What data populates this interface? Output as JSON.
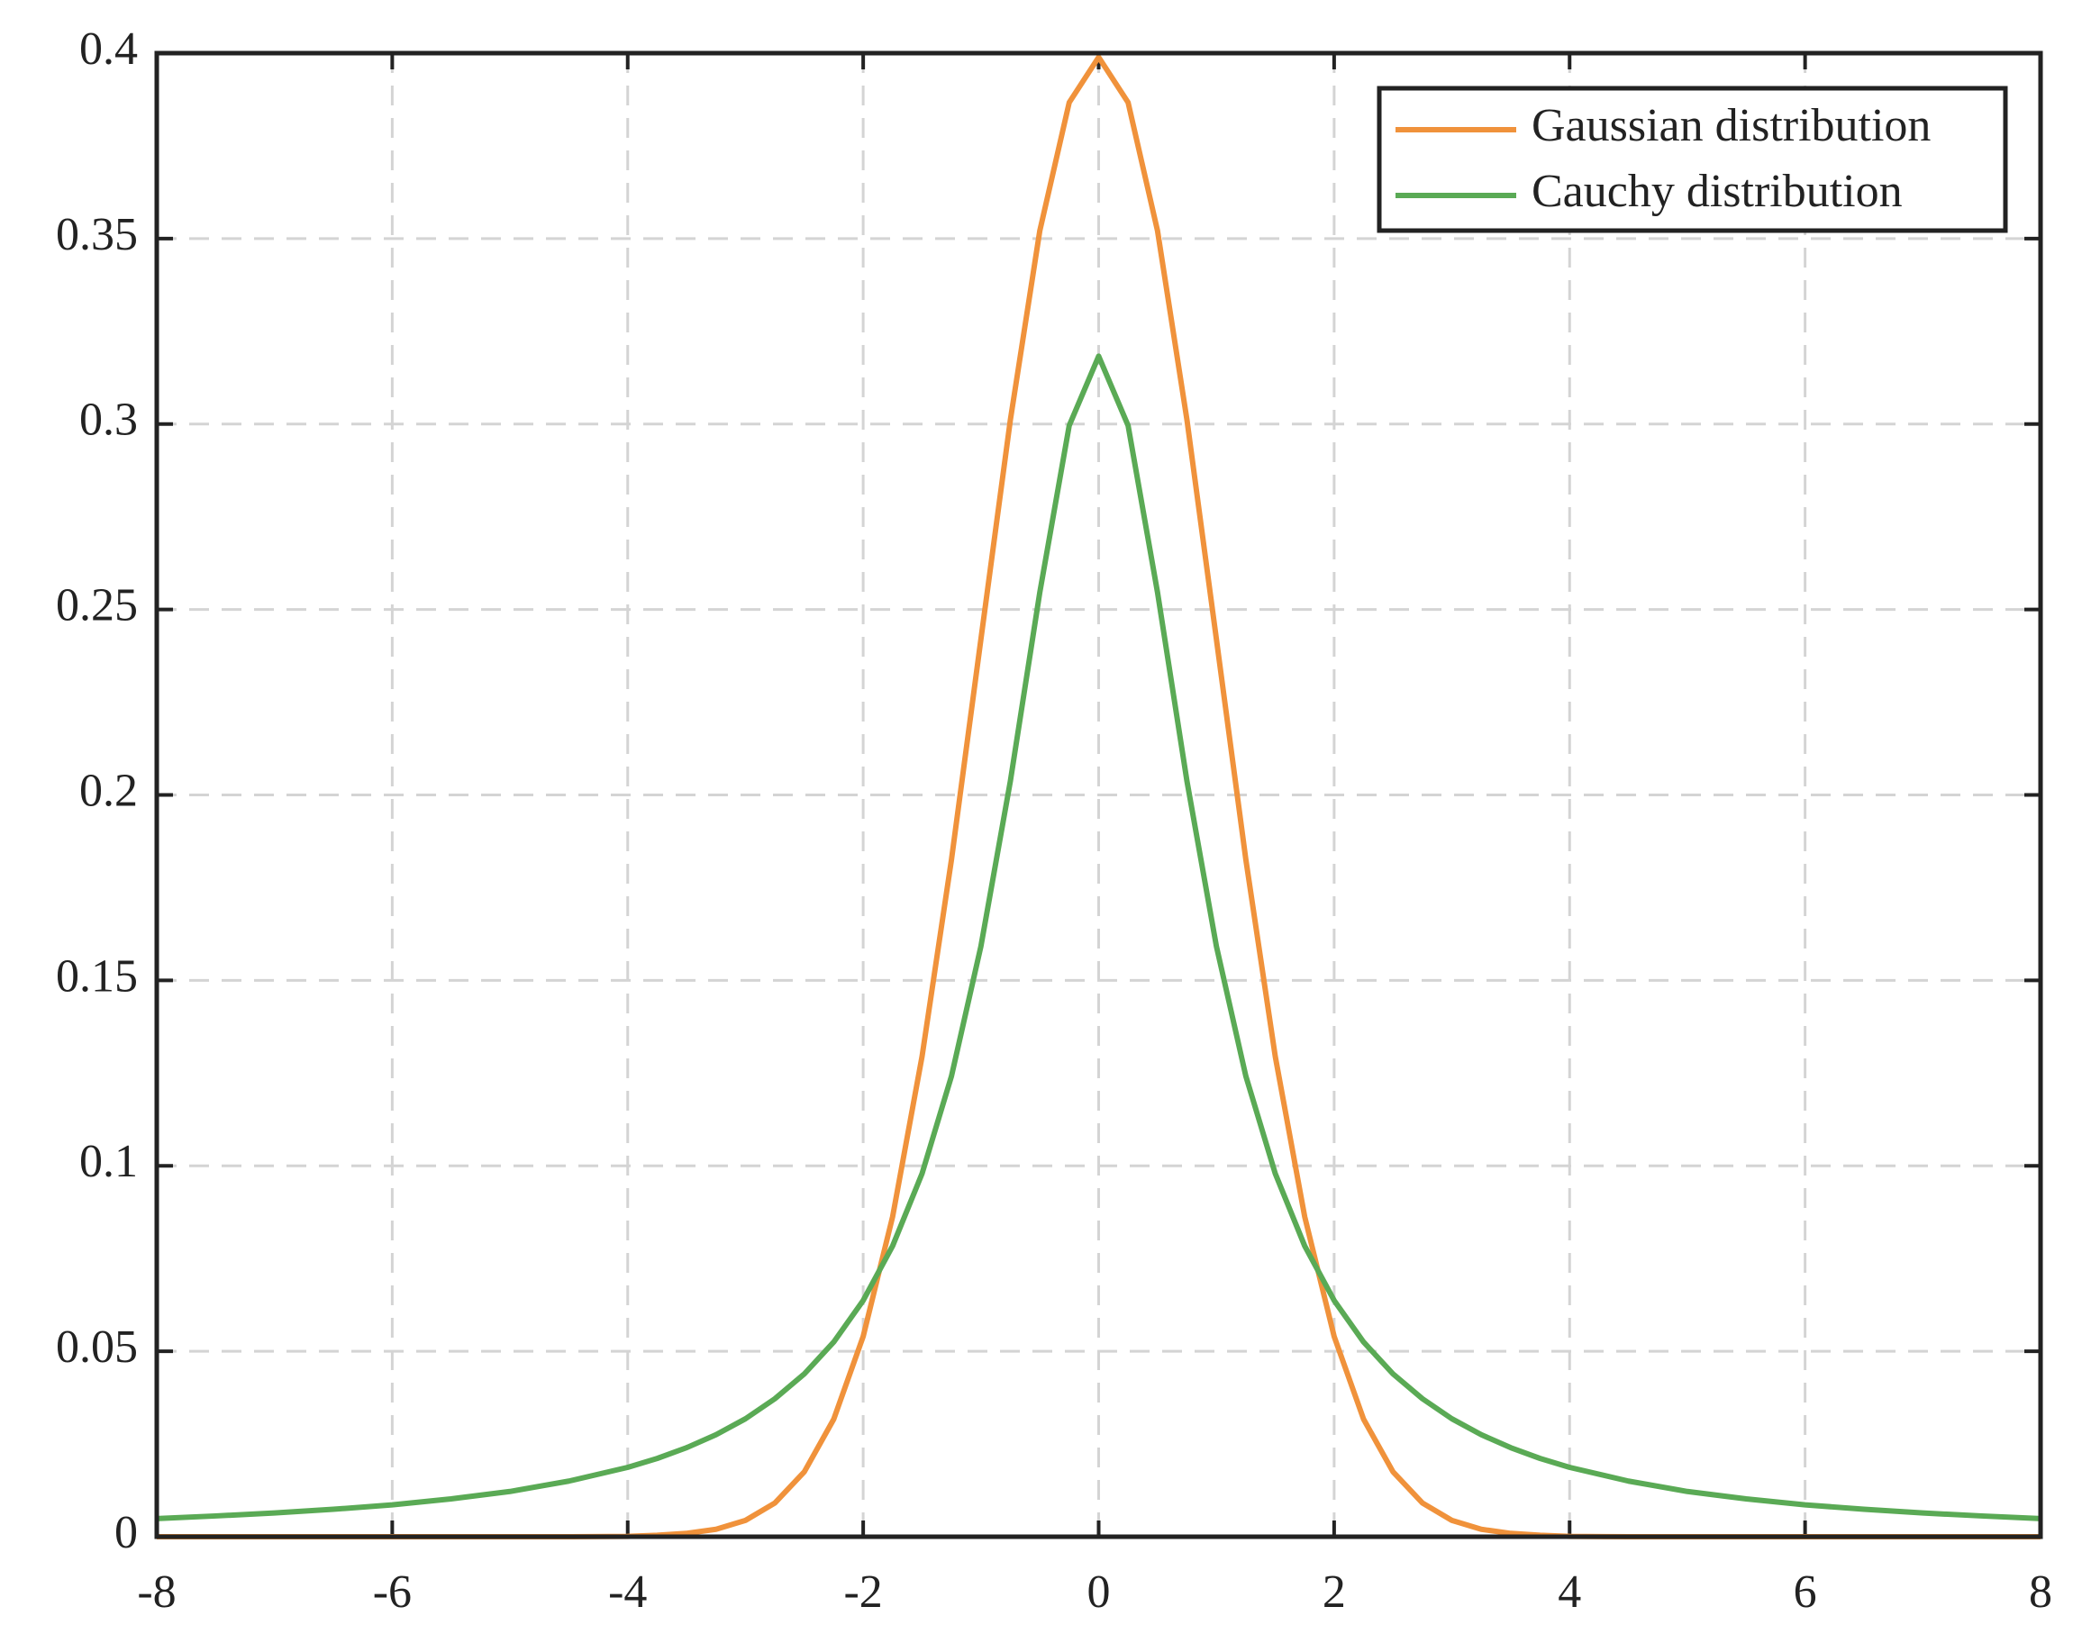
{
  "chart_data": {
    "type": "line",
    "x": [
      -8,
      -7.5,
      -7,
      -6.5,
      -6,
      -5.5,
      -5,
      -4.5,
      -4,
      -3.75,
      -3.5,
      -3.25,
      -3,
      -2.75,
      -2.5,
      -2.25,
      -2,
      -1.75,
      -1.5,
      -1.25,
      -1,
      -0.75,
      -0.5,
      -0.25,
      0,
      0.25,
      0.5,
      0.75,
      1,
      1.25,
      1.5,
      1.75,
      2,
      2.25,
      2.5,
      2.75,
      3,
      3.25,
      3.5,
      3.75,
      4,
      4.5,
      5,
      5.5,
      6,
      6.5,
      7,
      7.5,
      8
    ],
    "series": [
      {
        "name": "Gaussian distribution",
        "color": "#f0923b",
        "values": [
          0,
          0,
          0,
          0,
          0,
          0,
          0,
          0,
          0.0001,
          0.0004,
          0.0009,
          0.002,
          0.0044,
          0.0091,
          0.0175,
          0.0317,
          0.054,
          0.0863,
          0.1295,
          0.1826,
          0.242,
          0.3011,
          0.3521,
          0.3867,
          0.3989,
          0.3867,
          0.3521,
          0.3011,
          0.242,
          0.1826,
          0.1295,
          0.0863,
          0.054,
          0.0317,
          0.0175,
          0.0091,
          0.0044,
          0.002,
          0.0009,
          0.0004,
          0.0001,
          0,
          0,
          0,
          0,
          0,
          0,
          0,
          0
        ]
      },
      {
        "name": "Cauchy distribution",
        "color": "#5aaa55",
        "values": [
          0.0049,
          0.0056,
          0.0064,
          0.0074,
          0.0086,
          0.0102,
          0.0122,
          0.015,
          0.0187,
          0.0211,
          0.024,
          0.0275,
          0.0318,
          0.0372,
          0.0439,
          0.0525,
          0.0637,
          0.0784,
          0.0979,
          0.1242,
          0.1592,
          0.2037,
          0.2546,
          0.2996,
          0.3183,
          0.2996,
          0.2546,
          0.2037,
          0.1592,
          0.1242,
          0.0979,
          0.0784,
          0.0637,
          0.0525,
          0.0439,
          0.0372,
          0.0318,
          0.0275,
          0.024,
          0.0211,
          0.0187,
          0.015,
          0.0122,
          0.0102,
          0.0086,
          0.0074,
          0.0064,
          0.0056,
          0.0049
        ]
      }
    ],
    "xlim": [
      -8,
      8
    ],
    "xticks": [
      -8,
      -6,
      -4,
      -2,
      0,
      2,
      4,
      6,
      8
    ],
    "ylim": [
      0,
      0.4
    ],
    "yticks": [
      0,
      0.05,
      0.1,
      0.15,
      0.2,
      0.25,
      0.3,
      0.35,
      0.4
    ],
    "grid": true,
    "legend": "upper-right"
  }
}
